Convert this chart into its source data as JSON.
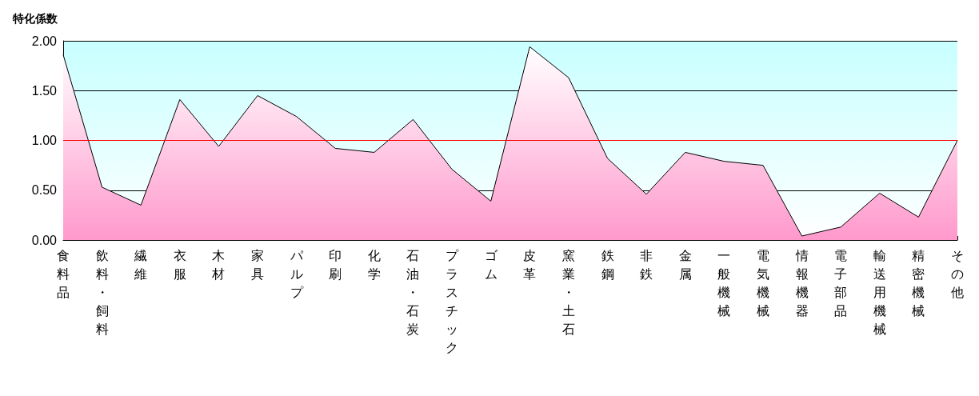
{
  "chart_data": {
    "type": "area",
    "ylabel": "特化係数",
    "categories": [
      "食料品",
      "飲料・飼料",
      "繊維",
      "衣服",
      "木材",
      "家具",
      "パルプ",
      "印刷",
      "化学",
      "石油・石炭",
      "プラスチック",
      "ゴム",
      "皮革",
      "窯業・土石",
      "鉄鋼",
      "非鉄",
      "金属",
      "一般機械",
      "電気機械",
      "情報機器",
      "電子部品",
      "輸送用機械",
      "精密機械",
      "その他"
    ],
    "series": [
      {
        "color": "#ff99cc",
        "values": [
          1.86,
          0.53,
          0.35,
          1.41,
          0.94,
          1.45,
          1.24,
          0.92,
          0.88,
          1.21,
          0.71,
          0.39,
          1.94,
          1.63,
          0.82,
          0.46,
          0.88,
          0.79,
          0.75,
          0.04,
          0.13,
          0.47,
          0.23,
          1.0
        ]
      }
    ],
    "ylim": [
      0,
      2
    ],
    "yticks": [
      {
        "value": 0,
        "label": "0.00"
      },
      {
        "value": 0.5,
        "label": "0.50"
      },
      {
        "value": 1,
        "label": "1.00"
      },
      {
        "value": 1.5,
        "label": "1.50"
      },
      {
        "value": 2,
        "label": "2.00"
      }
    ],
    "grid": "y",
    "ref_lines": [
      {
        "axis": "y",
        "value": 1,
        "label": null,
        "color": "#ff0000"
      }
    ]
  }
}
